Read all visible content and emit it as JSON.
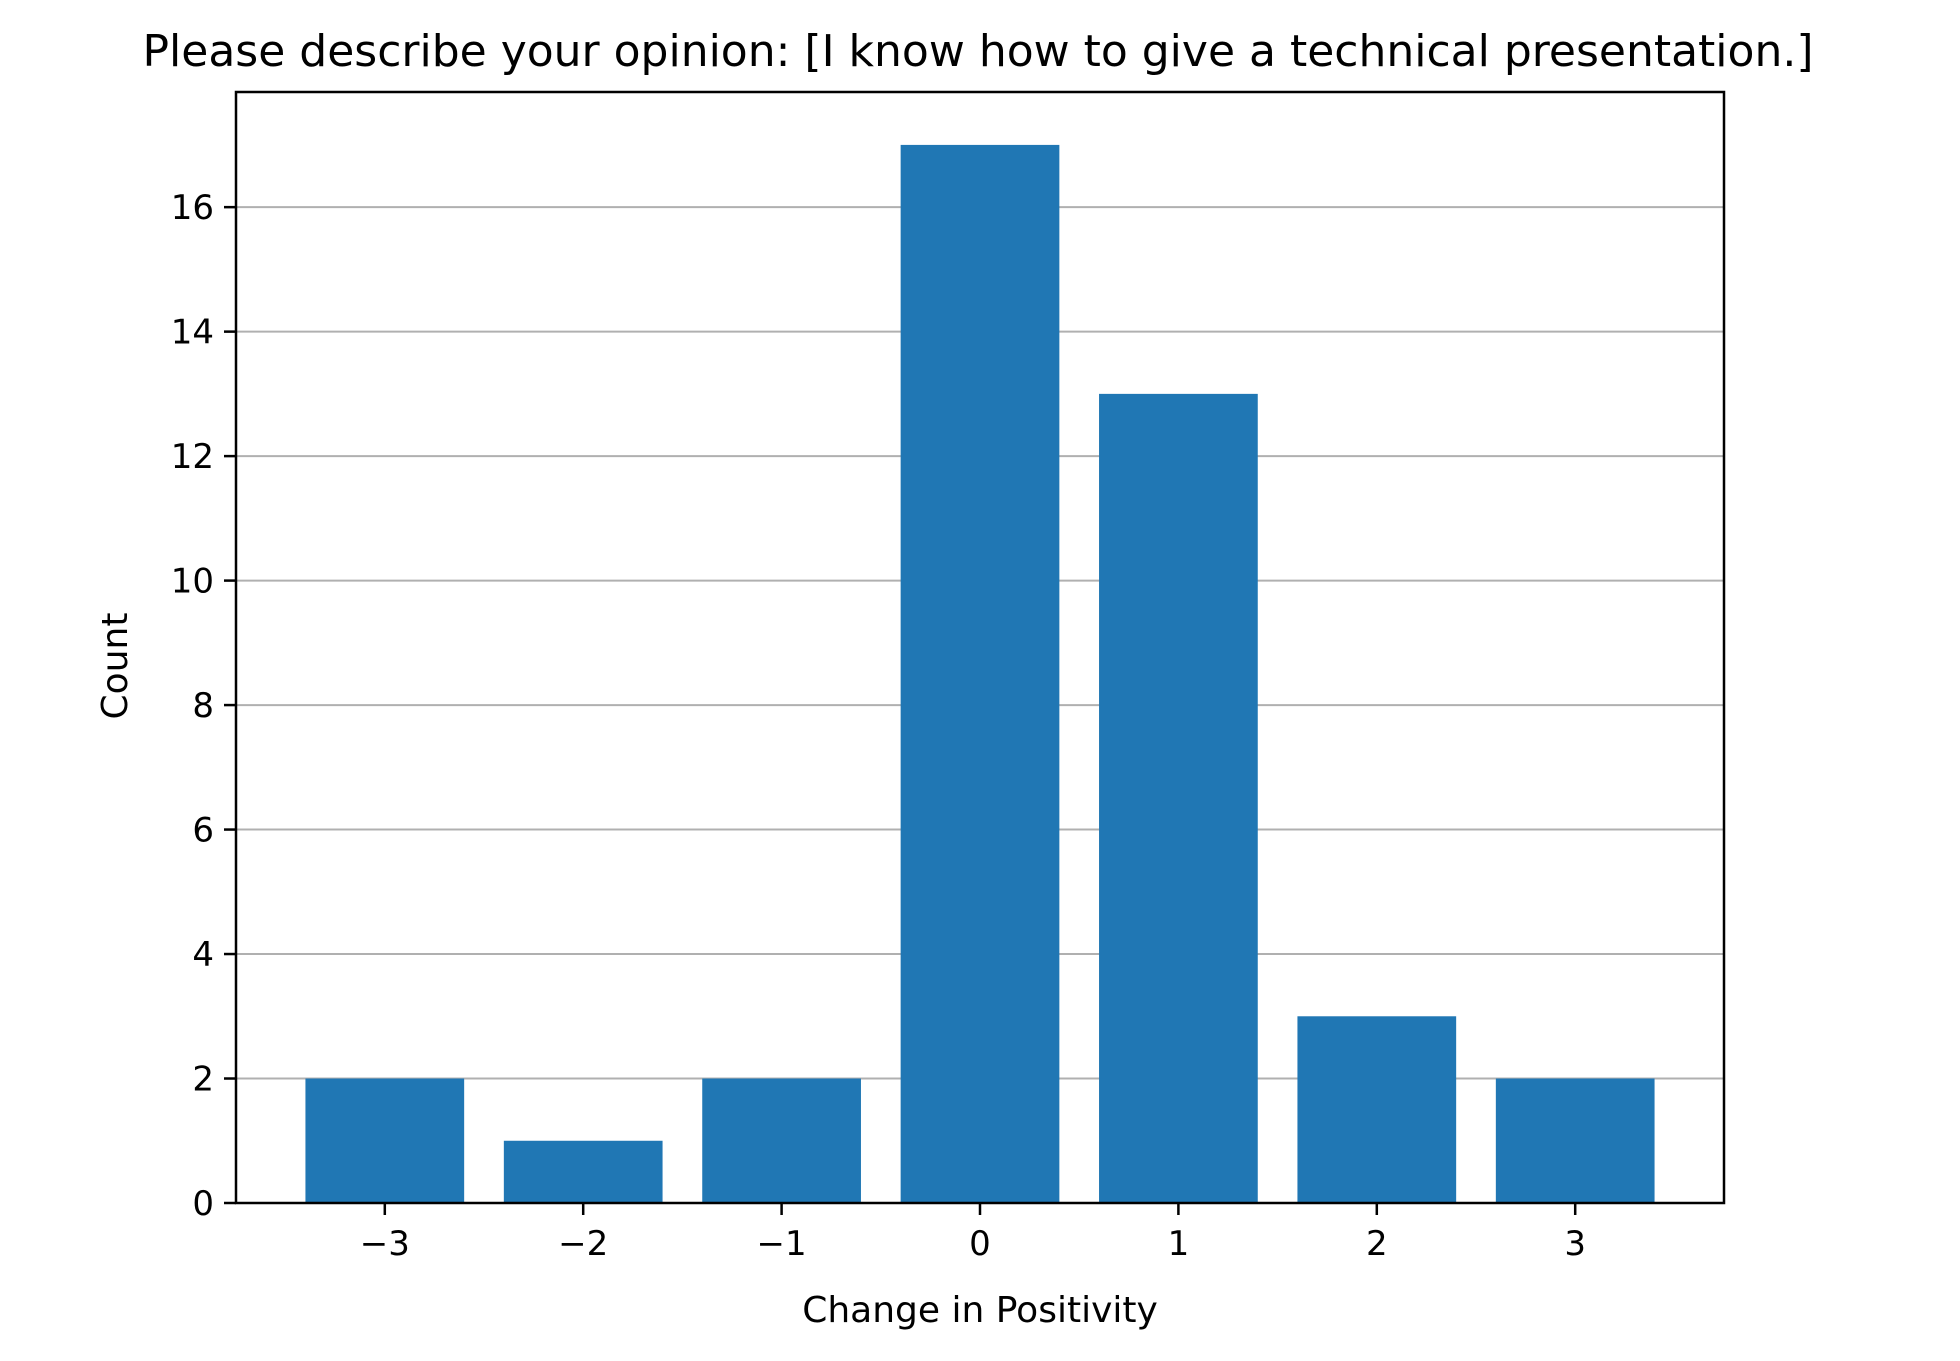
{
  "chart_data": {
    "type": "bar",
    "title": "Please describe your opinion: [I know how to give a technical presentation.]",
    "xlabel": "Change in Positivity",
    "ylabel": "Count",
    "x": [
      -3,
      -2,
      -1,
      0,
      1,
      2,
      3
    ],
    "values": [
      2,
      1,
      2,
      17,
      13,
      3,
      2
    ],
    "x_tick_labels": [
      "−3",
      "−2",
      "−1",
      "0",
      "1",
      "2",
      "3"
    ],
    "y_ticks": [
      0,
      2,
      4,
      6,
      8,
      10,
      12,
      14,
      16
    ],
    "y_tick_labels": [
      "0",
      "2",
      "4",
      "6",
      "8",
      "10",
      "12",
      "14",
      "16"
    ],
    "xlim": [
      -3.75,
      3.75
    ],
    "ylim": [
      0,
      17.85
    ],
    "grid": "horizontal",
    "bar_color": "#2077b4",
    "grid_color": "#b0b0b0"
  }
}
